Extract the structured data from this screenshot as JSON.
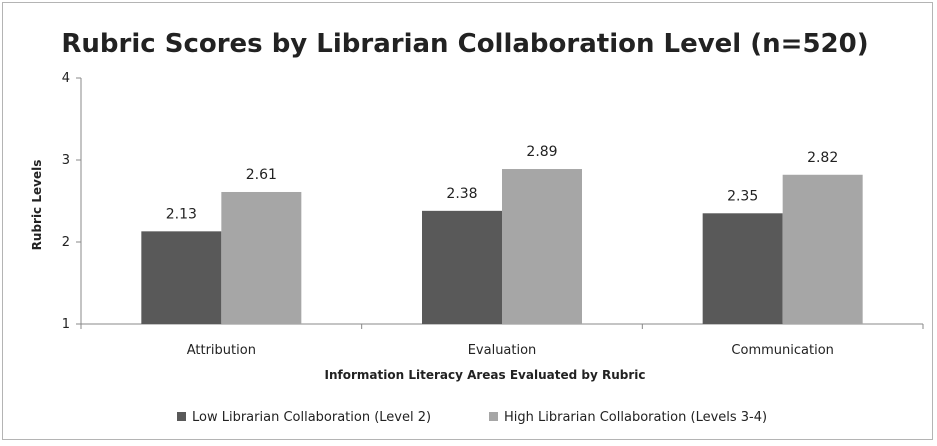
{
  "chart_data": {
    "type": "bar",
    "title": "Rubric Scores by Librarian Collaboration Level (n=520)",
    "xlabel": "Information Literacy Areas Evaluated by Rubric",
    "ylabel": "Rubric Levels",
    "categories": [
      "Attribution",
      "Evaluation",
      "Communication"
    ],
    "series": [
      {
        "name": "Low Librarian Collaboration (Level 2)",
        "values": [
          2.13,
          2.38,
          2.35
        ],
        "color": "#595959"
      },
      {
        "name": "High Librarian Collaboration (Levels 3-4)",
        "values": [
          2.61,
          2.89,
          2.82
        ],
        "color": "#a6a6a6"
      }
    ],
    "ylim": [
      1,
      4
    ],
    "yticks": [
      1,
      2,
      3,
      4
    ],
    "grid": false,
    "legend": "bottom"
  }
}
